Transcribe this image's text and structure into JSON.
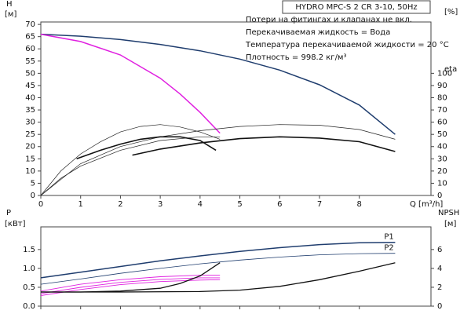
{
  "chart_data": [
    {
      "type": "line",
      "title": "HYDRO MPC-S 2 CR 3-10, 50Hz",
      "notes": [
        "Потери на фитингах и клапанах не вкл.",
        "Перекачиваемая жидкость = Вода",
        "Температура перекачиваемой жидкости = 20 °C",
        "Плотность = 998.2 кг/м³"
      ],
      "y_label": "H",
      "y_unit": "[м]",
      "y2_label": "eta",
      "y2_unit": "[%]",
      "x_label": "Q [m³/h]",
      "xlim": [
        0,
        9.8
      ],
      "xticks": [
        0,
        1,
        2,
        3,
        4,
        5,
        6,
        7,
        8
      ],
      "ylim": [
        0,
        71
      ],
      "yticks": [
        0,
        5,
        10,
        15,
        20,
        25,
        30,
        35,
        40,
        45,
        50,
        55,
        60,
        65,
        70
      ],
      "y2lim": [
        0,
        142
      ],
      "y2ticks": [
        0,
        10,
        20,
        30,
        40,
        50,
        60,
        70,
        80,
        90,
        100
      ],
      "series": [
        {
          "color": "#1f3d6e",
          "line_width": 1.5,
          "x": [
            0,
            1,
            2,
            3,
            4,
            5,
            6,
            7,
            8,
            8.9
          ],
          "values": [
            66,
            65.2,
            63.8,
            61.8,
            59.2,
            55.8,
            51.3,
            45.3,
            37,
            25
          ]
        },
        {
          "color": "#e020e0",
          "line_width": 1.5,
          "x": [
            0,
            1,
            2,
            3,
            3.5,
            4,
            4.5
          ],
          "values": [
            66,
            63,
            57.5,
            48,
            41.5,
            34,
            25.5
          ]
        },
        {
          "color": "#222222",
          "line_width": 0.7,
          "axis": "y2",
          "x": [
            0,
            0.5,
            1,
            1.5,
            2,
            2.5,
            3,
            3.5,
            4,
            4.5
          ],
          "values": [
            0,
            20,
            34,
            44,
            52,
            56.5,
            58,
            56,
            52,
            46
          ]
        },
        {
          "color": "#222222",
          "line_width": 0.7,
          "axis": "y2",
          "x": [
            0,
            1,
            2,
            3,
            4,
            5,
            6,
            7,
            8,
            8.9
          ],
          "values": [
            0,
            26,
            40,
            48,
            53,
            56.5,
            58,
            57.5,
            54,
            46
          ]
        },
        {
          "color": "#222222",
          "line_width": 0.7,
          "axis": "y2",
          "x": [
            0,
            0.5,
            1,
            2,
            3,
            4,
            4.5
          ],
          "values": [
            0,
            14,
            24,
            37,
            45,
            48,
            48
          ]
        },
        {
          "color": "#111111",
          "line_width": 1.6,
          "axis": "y2",
          "x": [
            0.9,
            1.5,
            2,
            2.5,
            3,
            3.5,
            4,
            4.4
          ],
          "values": [
            30,
            37,
            42,
            46,
            48,
            48,
            45,
            37
          ]
        },
        {
          "color": "#111111",
          "line_width": 1.6,
          "axis": "y2",
          "x": [
            2.3,
            3,
            4,
            5,
            6,
            7,
            8,
            8.9
          ],
          "values": [
            33,
            38,
            43,
            46.5,
            48,
            47,
            44,
            36
          ]
        }
      ]
    },
    {
      "type": "line",
      "y_label": "P",
      "y_unit": "[кВт]",
      "y2_label": "NPSH",
      "y2_unit": "[м]",
      "xlim": [
        0,
        9.8
      ],
      "xticks": [
        0,
        1,
        2,
        3,
        4,
        5,
        6,
        7,
        8
      ],
      "ylim": [
        0,
        2.1
      ],
      "yticks": [
        {
          "value": 0,
          "label": "0.0"
        },
        0.5,
        {
          "value": 1,
          "label": "1.0"
        },
        1.5
      ],
      "y2lim": [
        0,
        8.4
      ],
      "y2ticks": [
        0,
        2,
        4,
        6
      ],
      "series": [
        {
          "name": "P1",
          "color": "#1f3d6e",
          "line_width": 1.5,
          "x": [
            0,
            1,
            2,
            3,
            4,
            5,
            6,
            7,
            8,
            8.9
          ],
          "values": [
            0.75,
            0.9,
            1.05,
            1.2,
            1.33,
            1.45,
            1.55,
            1.63,
            1.68,
            1.69
          ]
        },
        {
          "name": "P2",
          "color": "#1f3d6e",
          "line_width": 0.8,
          "x": [
            0,
            1,
            2,
            3,
            4,
            5,
            6,
            7,
            8,
            8.9
          ],
          "values": [
            0.58,
            0.72,
            0.87,
            1.0,
            1.12,
            1.22,
            1.3,
            1.36,
            1.39,
            1.4
          ]
        },
        {
          "color": "#e020e0",
          "line_width": 0.9,
          "x": [
            0,
            1,
            2,
            3,
            4,
            4.5
          ],
          "values": [
            0.4,
            0.58,
            0.7,
            0.78,
            0.82,
            0.82
          ]
        },
        {
          "color": "#e020e0",
          "line_width": 0.9,
          "x": [
            0,
            1,
            2,
            3,
            4,
            4.5
          ],
          "values": [
            0.33,
            0.5,
            0.63,
            0.71,
            0.75,
            0.75
          ]
        },
        {
          "color": "#e020e0",
          "line_width": 0.9,
          "x": [
            0,
            1,
            2,
            3,
            4,
            4.5
          ],
          "values": [
            0.28,
            0.44,
            0.57,
            0.65,
            0.69,
            0.7
          ]
        },
        {
          "color": "#111111",
          "line_width": 1.3,
          "axis": "y2",
          "x": [
            0,
            1,
            2,
            3,
            3.5,
            4,
            4.5
          ],
          "values": [
            1.5,
            1.5,
            1.6,
            1.9,
            2.4,
            3.2,
            4.6
          ]
        },
        {
          "color": "#111111",
          "line_width": 1.3,
          "axis": "y2",
          "x": [
            0,
            2,
            4,
            5,
            6,
            7,
            8,
            8.9
          ],
          "values": [
            1.5,
            1.5,
            1.55,
            1.7,
            2.1,
            2.8,
            3.7,
            4.6
          ]
        }
      ]
    }
  ]
}
